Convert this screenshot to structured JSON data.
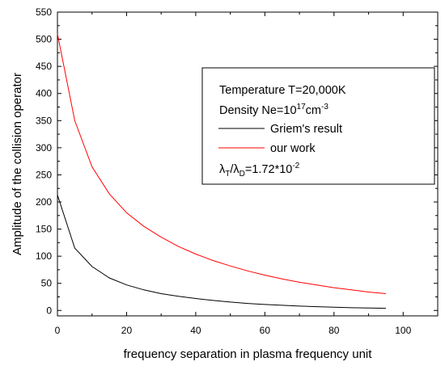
{
  "chart_data": {
    "type": "line",
    "xlabel": "frequency separation in plasma frequency unit",
    "ylabel": "Amplitude of the collision operator",
    "xlim": [
      0,
      110
    ],
    "ylim": [
      -10,
      550
    ],
    "xticks": [
      0,
      20,
      40,
      60,
      80,
      100
    ],
    "yticks": [
      0,
      50,
      100,
      150,
      200,
      250,
      300,
      350,
      400,
      450,
      500,
      550
    ],
    "grid": false,
    "legend_placement": "top-right",
    "legend": {
      "temperature": "Temperature T=20,000K",
      "density_prefix": "Density Ne=10",
      "density_exp": "17",
      "density_unit": "cm",
      "density_unit_exp": "-3",
      "ratio_lambda1": "λ",
      "ratio_sub1": "T",
      "ratio_slash": "/λ",
      "ratio_sub2": "D",
      "ratio_value": "=1.72*10",
      "ratio_exp": "-2"
    },
    "series": [
      {
        "name": "Griem's result",
        "color": "#000000",
        "x": [
          0,
          5,
          10,
          15,
          20,
          25,
          30,
          35,
          40,
          45,
          50,
          55,
          60,
          65,
          70,
          75,
          80,
          85,
          90,
          95
        ],
        "y": [
          213,
          115,
          81,
          60,
          47,
          38,
          31,
          26,
          22,
          18.5,
          15.5,
          13,
          11,
          9.5,
          8,
          7,
          6,
          5,
          4.5,
          4
        ]
      },
      {
        "name": "our work",
        "color": "#ff0000",
        "x": [
          0,
          5,
          10,
          15,
          20,
          25,
          30,
          35,
          40,
          45,
          50,
          55,
          60,
          65,
          70,
          75,
          80,
          85,
          90,
          95
        ],
        "y": [
          510,
          350,
          265,
          215,
          180,
          155,
          135,
          118,
          104,
          92,
          82,
          73,
          65,
          58,
          52,
          47,
          42,
          38,
          34,
          31
        ]
      }
    ]
  }
}
